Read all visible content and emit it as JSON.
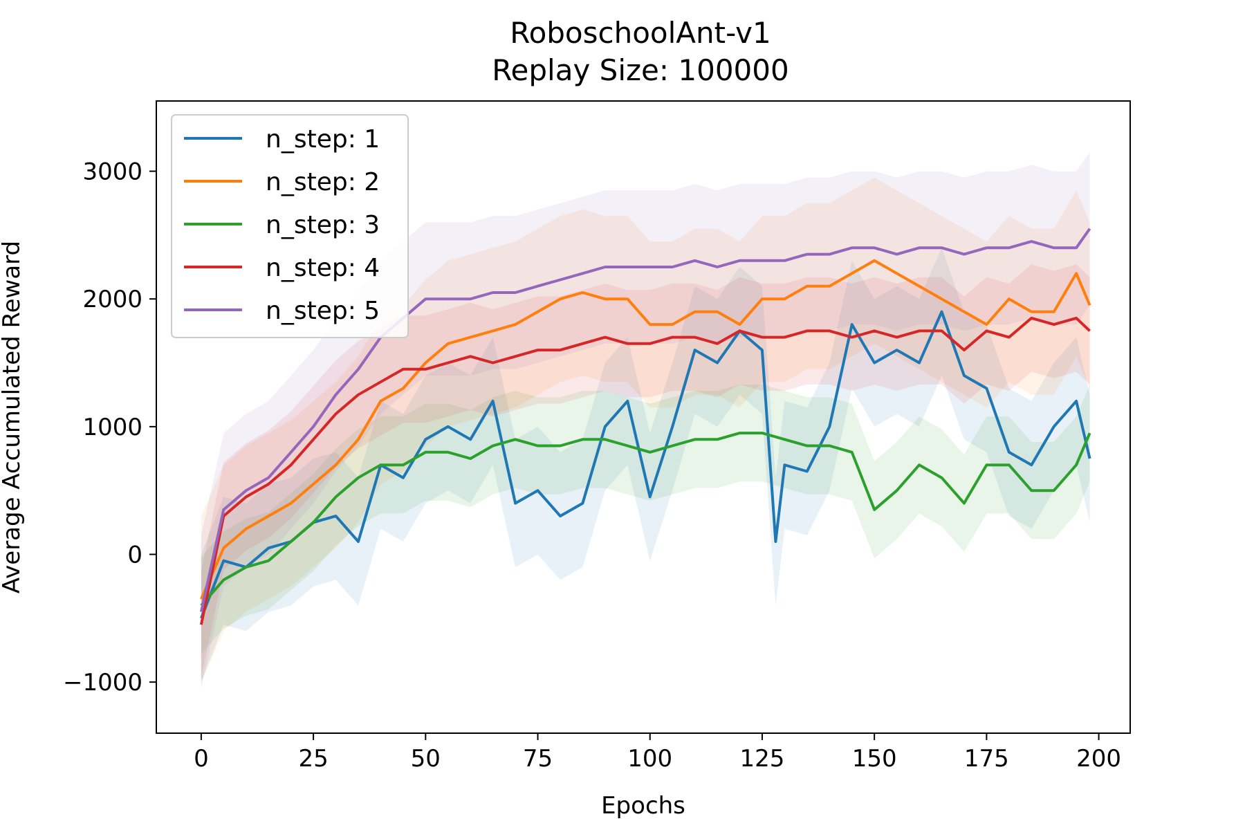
{
  "chart_data": {
    "type": "line",
    "title": "RoboschoolAnt-v1",
    "subtitle": "Replay Size: 100000",
    "xlabel": "Epochs",
    "ylabel": "Average Accumulated Reward",
    "xlim": [
      -10,
      207
    ],
    "ylim": [
      -1400,
      3550
    ],
    "xticks": [
      0,
      25,
      50,
      75,
      100,
      125,
      150,
      175,
      200
    ],
    "yticks": [
      -1000,
      0,
      1000,
      2000,
      3000
    ],
    "xtick_labels": [
      "0",
      "25",
      "50",
      "75",
      "100",
      "125",
      "150",
      "175",
      "200"
    ],
    "ytick_labels": [
      "−1000",
      "0",
      "1000",
      "2000",
      "3000"
    ],
    "grid": false,
    "legend_position": "upper-left",
    "series": [
      {
        "name": "n_step: 1",
        "color": "#1f77b4",
        "x": [
          0,
          5,
          10,
          15,
          20,
          25,
          30,
          35,
          40,
          45,
          50,
          55,
          60,
          65,
          70,
          75,
          80,
          85,
          90,
          95,
          100,
          105,
          110,
          115,
          120,
          125,
          128,
          130,
          135,
          140,
          145,
          150,
          155,
          160,
          165,
          170,
          175,
          180,
          185,
          190,
          195,
          198
        ],
        "y": [
          -500,
          -50,
          -100,
          50,
          100,
          250,
          300,
          100,
          700,
          600,
          900,
          1000,
          900,
          1200,
          400,
          500,
          300,
          400,
          1000,
          1200,
          450,
          1000,
          1600,
          1500,
          1750,
          1600,
          100,
          700,
          650,
          1000,
          1800,
          1500,
          1600,
          1500,
          1900,
          1400,
          1300,
          800,
          700,
          1000,
          1200,
          750
        ],
        "band": 500
      },
      {
        "name": "n_step: 2",
        "color": "#ff7f0e",
        "x": [
          0,
          5,
          10,
          15,
          20,
          25,
          30,
          35,
          40,
          45,
          50,
          55,
          60,
          65,
          70,
          75,
          80,
          85,
          90,
          95,
          100,
          105,
          110,
          115,
          120,
          125,
          130,
          135,
          140,
          145,
          150,
          155,
          160,
          165,
          170,
          175,
          180,
          185,
          190,
          195,
          198
        ],
        "y": [
          -350,
          50,
          200,
          300,
          400,
          550,
          700,
          900,
          1200,
          1300,
          1500,
          1650,
          1700,
          1750,
          1800,
          1900,
          2000,
          2050,
          2000,
          2000,
          1800,
          1800,
          1900,
          1900,
          1800,
          2000,
          2000,
          2100,
          2100,
          2200,
          2300,
          2200,
          2100,
          2000,
          1900,
          1800,
          2000,
          1900,
          1900,
          2200,
          1950
        ],
        "band": 650
      },
      {
        "name": "n_step: 3",
        "color": "#2ca02c",
        "x": [
          0,
          5,
          10,
          15,
          20,
          25,
          30,
          35,
          40,
          45,
          50,
          55,
          60,
          65,
          70,
          75,
          80,
          85,
          90,
          95,
          100,
          105,
          110,
          115,
          120,
          125,
          130,
          135,
          140,
          145,
          150,
          155,
          160,
          165,
          170,
          175,
          180,
          185,
          190,
          195,
          198
        ],
        "y": [
          -400,
          -200,
          -100,
          -50,
          100,
          250,
          450,
          600,
          700,
          700,
          800,
          800,
          750,
          850,
          900,
          850,
          850,
          900,
          900,
          850,
          800,
          850,
          900,
          900,
          950,
          950,
          900,
          850,
          850,
          800,
          350,
          500,
          700,
          600,
          400,
          700,
          700,
          500,
          500,
          700,
          950
        ],
        "band": 380
      },
      {
        "name": "n_step: 4",
        "color": "#d62728",
        "x": [
          0,
          5,
          10,
          15,
          20,
          25,
          30,
          35,
          40,
          45,
          50,
          55,
          60,
          65,
          70,
          75,
          80,
          85,
          90,
          95,
          100,
          105,
          110,
          115,
          120,
          125,
          130,
          135,
          140,
          145,
          150,
          155,
          160,
          165,
          170,
          175,
          180,
          185,
          190,
          195,
          198
        ],
        "y": [
          -550,
          300,
          450,
          550,
          700,
          900,
          1100,
          1250,
          1350,
          1450,
          1450,
          1500,
          1550,
          1500,
          1550,
          1600,
          1600,
          1650,
          1700,
          1650,
          1650,
          1700,
          1700,
          1650,
          1750,
          1700,
          1700,
          1750,
          1750,
          1700,
          1750,
          1700,
          1750,
          1750,
          1600,
          1750,
          1700,
          1850,
          1800,
          1850,
          1750
        ],
        "band": 420
      },
      {
        "name": "n_step: 5",
        "color": "#9467bd",
        "x": [
          0,
          5,
          10,
          15,
          20,
          25,
          30,
          35,
          40,
          45,
          50,
          55,
          60,
          65,
          70,
          75,
          80,
          85,
          90,
          95,
          100,
          105,
          110,
          115,
          120,
          125,
          130,
          135,
          140,
          145,
          150,
          155,
          160,
          165,
          170,
          175,
          180,
          185,
          190,
          195,
          198
        ],
        "y": [
          -450,
          350,
          500,
          600,
          800,
          1000,
          1250,
          1450,
          1700,
          1850,
          2000,
          2000,
          2000,
          2050,
          2050,
          2100,
          2150,
          2200,
          2250,
          2250,
          2250,
          2250,
          2300,
          2250,
          2300,
          2300,
          2300,
          2350,
          2350,
          2400,
          2400,
          2350,
          2400,
          2400,
          2350,
          2400,
          2400,
          2450,
          2400,
          2400,
          2550
        ],
        "band": 600
      }
    ]
  }
}
